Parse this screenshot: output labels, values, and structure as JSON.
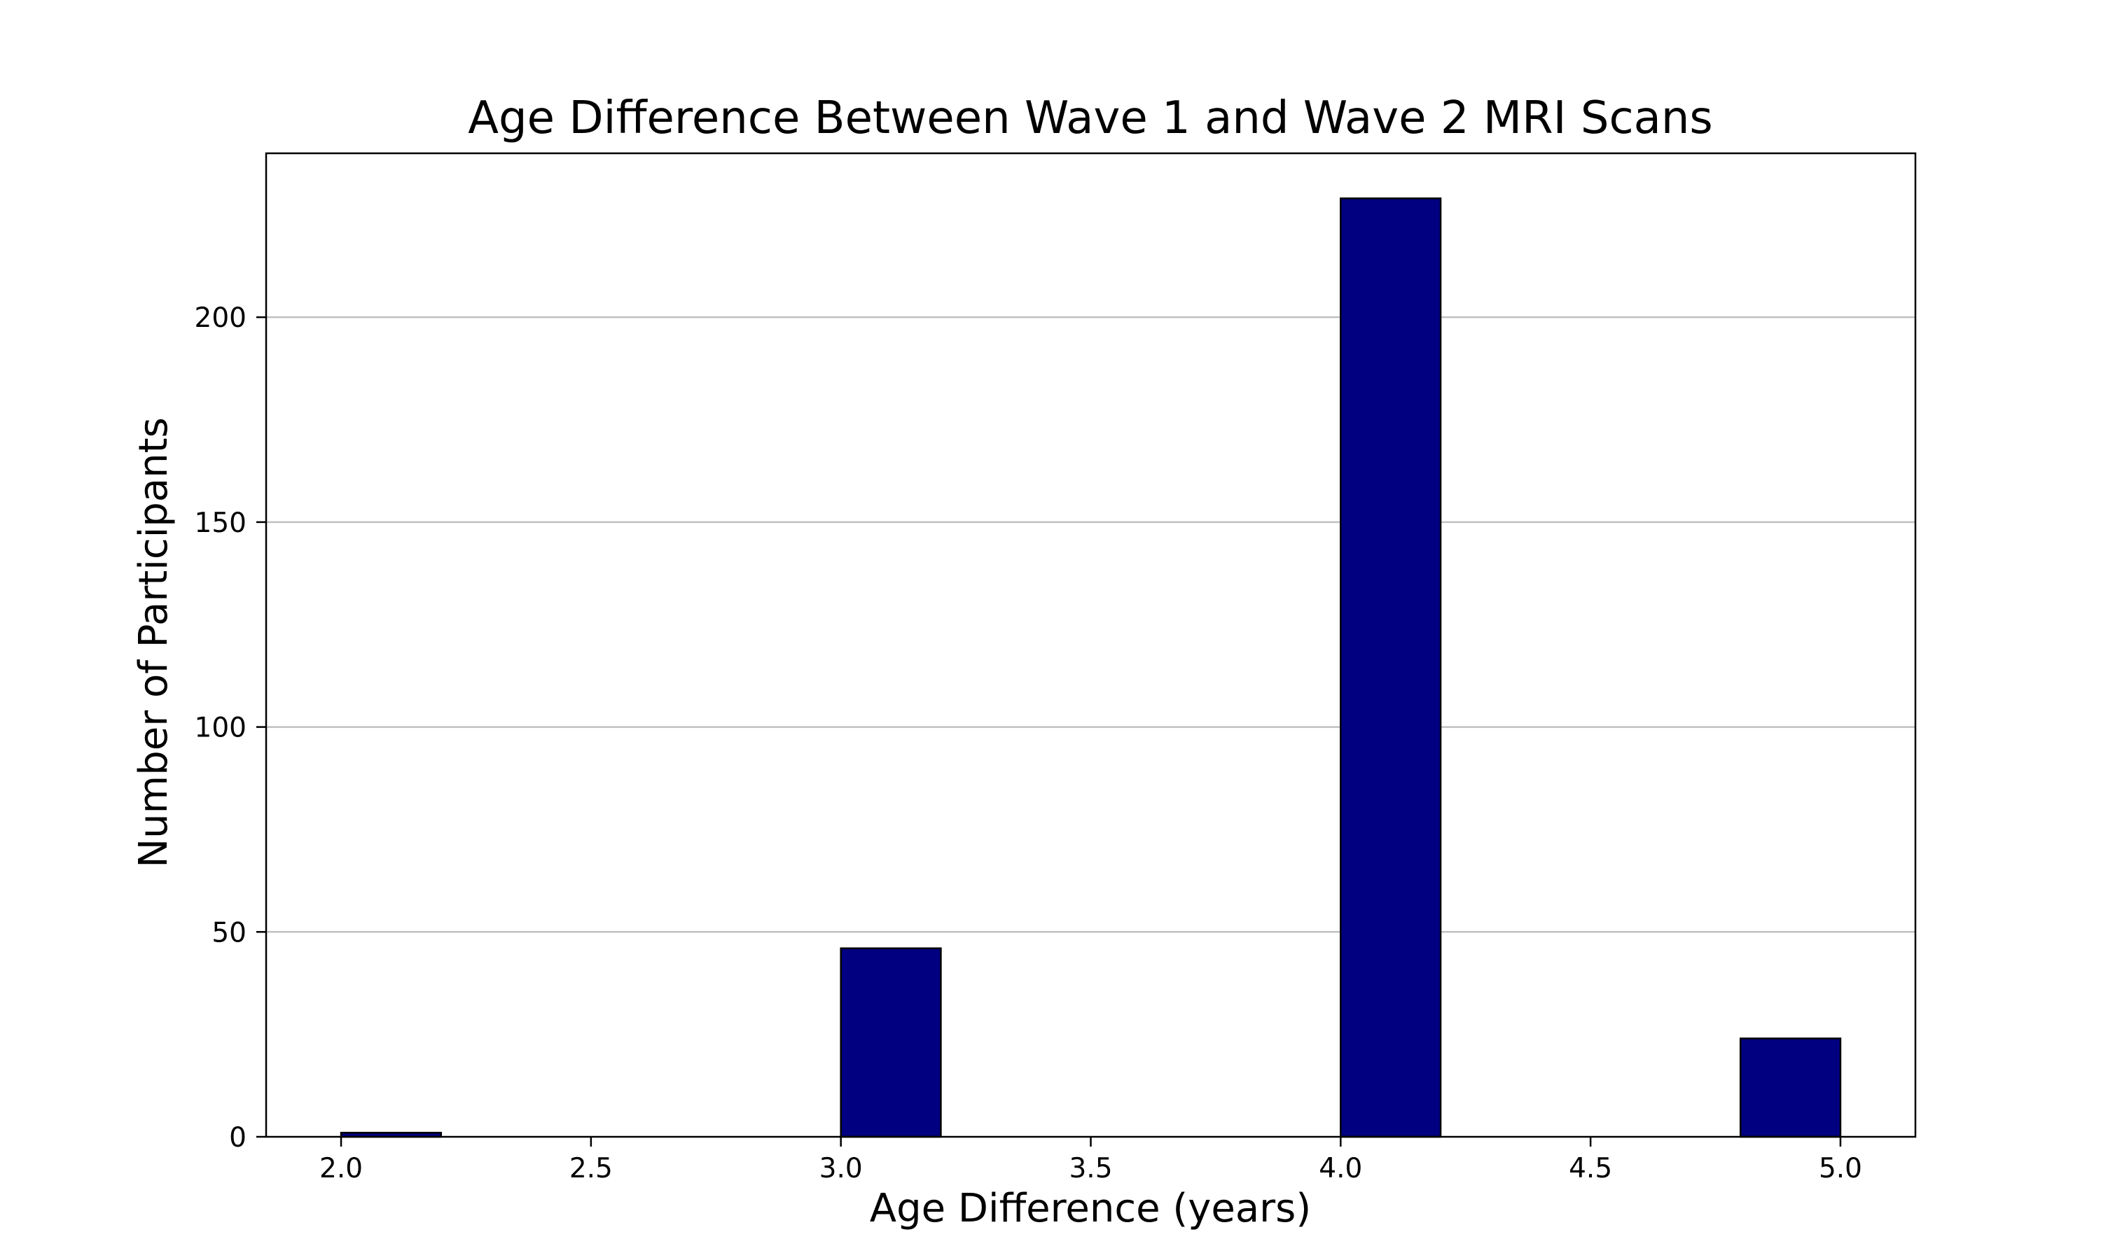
{
  "chart_data": {
    "type": "bar",
    "title": "Age Difference Between Wave 1 and Wave 2 MRI Scans",
    "xlabel": "Age Difference (years)",
    "ylabel": "Number of Participants",
    "xlim": [
      1.85,
      5.15
    ],
    "ylim": [
      0,
      240
    ],
    "xticks": [
      2.0,
      2.5,
      3.0,
      3.5,
      4.0,
      4.5,
      5.0
    ],
    "xtick_labels": [
      "2.0",
      "2.5",
      "3.0",
      "3.5",
      "4.0",
      "4.5",
      "5.0"
    ],
    "yticks": [
      0,
      50,
      100,
      150,
      200
    ],
    "ytick_labels": [
      "0",
      "50",
      "100",
      "150",
      "200"
    ],
    "grid": "y",
    "bars": [
      {
        "x_start": 2.0,
        "x_end": 2.2,
        "value": 1
      },
      {
        "x_start": 3.0,
        "x_end": 3.2,
        "value": 46
      },
      {
        "x_start": 4.0,
        "x_end": 4.2,
        "value": 229
      },
      {
        "x_start": 4.8,
        "x_end": 5.0,
        "value": 24
      }
    ],
    "colors": {
      "bar_fill": "#000080",
      "bar_edge": "#000000",
      "grid": "#c0c0c0",
      "axes": "#000000"
    }
  }
}
